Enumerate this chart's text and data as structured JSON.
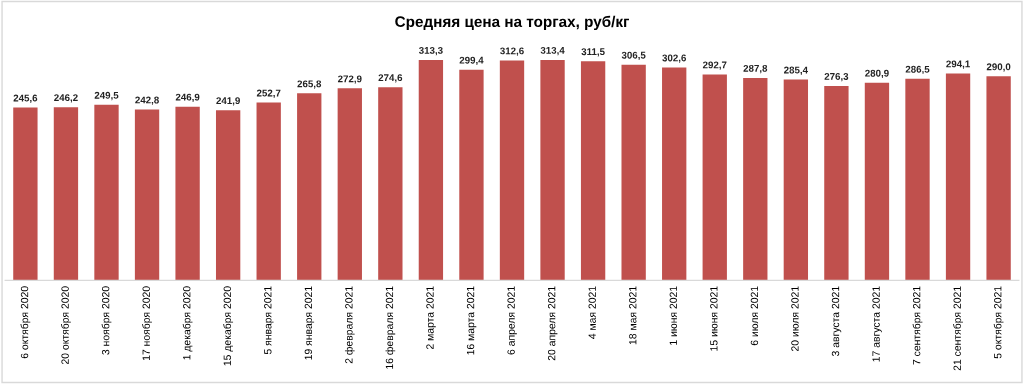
{
  "chart_data": {
    "type": "bar",
    "title": "Средняя цена на торгах, руб/кг",
    "categories": [
      "6 октября 2020",
      "20 октября 2020",
      "3 ноября 2020",
      "17 ноября 2020",
      "1 декабря 2020",
      "15 декабря 2020",
      "5 января 2021",
      "19 января 2021",
      "2 февраля 2021",
      "16 февраля 2021",
      "2 марта 2021",
      "16 марта 2021",
      "6 апреля 2021",
      "20 апреля 2021",
      "4 мая 2021",
      "18 мая 2021",
      "1 июня 2021",
      "15 июня 2021",
      "6 июля 2021",
      "20 июля 2021",
      "3 августа 2021",
      "17 августа 2021",
      "7 сентября 2021",
      "21 сентября 2021",
      "5 октября 2021"
    ],
    "values": [
      245.6,
      246.2,
      249.5,
      242.8,
      246.9,
      241.9,
      252.7,
      265.8,
      272.9,
      274.6,
      313.3,
      299.4,
      312.6,
      313.4,
      311.5,
      306.5,
      302.6,
      292.7,
      287.8,
      285.4,
      276.3,
      280.9,
      286.5,
      294.1,
      290.0
    ],
    "value_labels": [
      "245,6",
      "246,2",
      "249,5",
      "242,8",
      "246,9",
      "241,9",
      "252,7",
      "265,8",
      "272,9",
      "274,6",
      "313,3",
      "299,4",
      "312,6",
      "313,4",
      "311,5",
      "306,5",
      "302,6",
      "292,7",
      "287,8",
      "285,4",
      "276,3",
      "280,9",
      "286,5",
      "294,1",
      "290,0"
    ],
    "color": "#c0504d",
    "grid": false,
    "legend": false
  }
}
